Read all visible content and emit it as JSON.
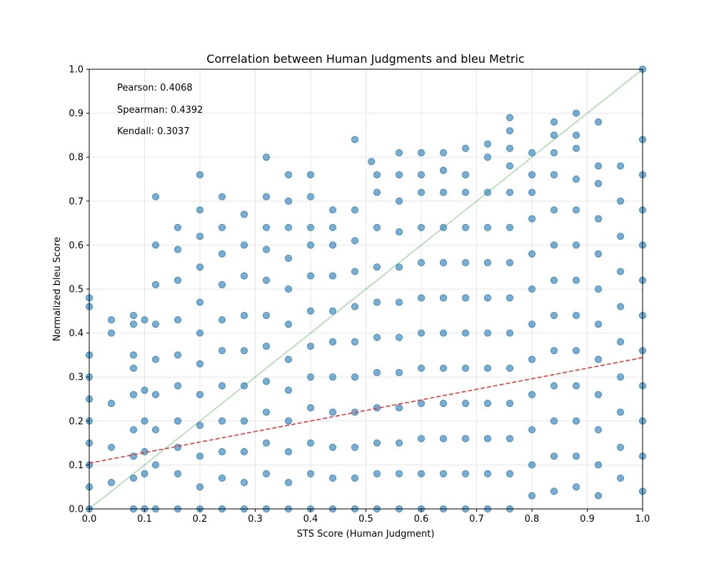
{
  "chart_data": {
    "type": "scatter",
    "title": "Correlation between Human Judgments and bleu Metric",
    "xlabel": "STS Score (Human Judgment)",
    "ylabel": "Normalized bleu Score",
    "xlim": [
      0,
      1
    ],
    "ylim": [
      0,
      1
    ],
    "x_ticks": [
      0.0,
      0.1,
      0.2,
      0.3,
      0.4,
      0.5,
      0.6,
      0.7,
      0.8,
      0.9,
      1.0
    ],
    "y_ticks": [
      0.0,
      0.1,
      0.2,
      0.3,
      0.4,
      0.5,
      0.6,
      0.7,
      0.8,
      0.9,
      1.0
    ],
    "x_tick_labels": [
      "0.0",
      "0.1",
      "0.2",
      "0.3",
      "0.4",
      "0.5",
      "0.6",
      "0.7",
      "0.8",
      "0.9",
      "1.0"
    ],
    "y_tick_labels": [
      "0.0",
      "0.1",
      "0.2",
      "0.3",
      "0.4",
      "0.5",
      "0.6",
      "0.7",
      "0.8",
      "0.9",
      "1.0"
    ],
    "grid": true,
    "stats": [
      "Pearson: 0.4068",
      "Spearman: 0.4392",
      "Kendall: 0.3037"
    ],
    "point_color": "#1f77b4",
    "trend_color": "#e83a3a",
    "diagonal_color": "#2ca02c",
    "trend_line": {
      "x": [
        0,
        1
      ],
      "y": [
        0.104,
        0.344
      ]
    },
    "diagonal_line": {
      "x": [
        0,
        1
      ],
      "y": [
        0,
        1
      ]
    },
    "series": [
      {
        "points": [
          [
            0.0,
            0.0
          ],
          [
            0.0,
            0.05
          ],
          [
            0.0,
            0.1
          ],
          [
            0.0,
            0.15
          ],
          [
            0.0,
            0.2
          ],
          [
            0.0,
            0.25
          ],
          [
            0.0,
            0.3
          ],
          [
            0.0,
            0.35
          ],
          [
            0.0,
            0.46
          ],
          [
            0.0,
            0.48
          ],
          [
            0.04,
            0.4
          ],
          [
            0.04,
            0.43
          ],
          [
            0.04,
            0.24
          ],
          [
            0.04,
            0.14
          ],
          [
            0.04,
            0.06
          ],
          [
            0.08,
            0.0
          ],
          [
            0.08,
            0.07
          ],
          [
            0.08,
            0.12
          ],
          [
            0.08,
            0.18
          ],
          [
            0.08,
            0.26
          ],
          [
            0.08,
            0.32
          ],
          [
            0.08,
            0.35
          ],
          [
            0.08,
            0.42
          ],
          [
            0.08,
            0.44
          ],
          [
            0.1,
            0.0
          ],
          [
            0.1,
            0.08
          ],
          [
            0.1,
            0.13
          ],
          [
            0.1,
            0.2
          ],
          [
            0.1,
            0.27
          ],
          [
            0.1,
            0.43
          ],
          [
            0.12,
            0.0
          ],
          [
            0.12,
            0.1
          ],
          [
            0.12,
            0.18
          ],
          [
            0.12,
            0.26
          ],
          [
            0.12,
            0.34
          ],
          [
            0.12,
            0.42
          ],
          [
            0.12,
            0.51
          ],
          [
            0.12,
            0.6
          ],
          [
            0.12,
            0.71
          ],
          [
            0.16,
            0.0
          ],
          [
            0.16,
            0.08
          ],
          [
            0.16,
            0.14
          ],
          [
            0.16,
            0.2
          ],
          [
            0.16,
            0.28
          ],
          [
            0.16,
            0.35
          ],
          [
            0.16,
            0.43
          ],
          [
            0.16,
            0.52
          ],
          [
            0.16,
            0.59
          ],
          [
            0.16,
            0.64
          ],
          [
            0.2,
            0.0
          ],
          [
            0.2,
            0.05
          ],
          [
            0.2,
            0.12
          ],
          [
            0.2,
            0.19
          ],
          [
            0.2,
            0.26
          ],
          [
            0.2,
            0.33
          ],
          [
            0.2,
            0.4
          ],
          [
            0.2,
            0.47
          ],
          [
            0.2,
            0.55
          ],
          [
            0.2,
            0.62
          ],
          [
            0.2,
            0.68
          ],
          [
            0.2,
            0.76
          ],
          [
            0.24,
            0.0
          ],
          [
            0.24,
            0.07
          ],
          [
            0.24,
            0.13
          ],
          [
            0.24,
            0.2
          ],
          [
            0.24,
            0.28
          ],
          [
            0.24,
            0.36
          ],
          [
            0.24,
            0.43
          ],
          [
            0.24,
            0.51
          ],
          [
            0.24,
            0.58
          ],
          [
            0.24,
            0.64
          ],
          [
            0.24,
            0.71
          ],
          [
            0.28,
            0.0
          ],
          [
            0.28,
            0.06
          ],
          [
            0.28,
            0.13
          ],
          [
            0.28,
            0.2
          ],
          [
            0.28,
            0.28
          ],
          [
            0.28,
            0.36
          ],
          [
            0.28,
            0.44
          ],
          [
            0.28,
            0.53
          ],
          [
            0.28,
            0.6
          ],
          [
            0.28,
            0.67
          ],
          [
            0.32,
            0.0
          ],
          [
            0.32,
            0.08
          ],
          [
            0.32,
            0.15
          ],
          [
            0.32,
            0.22
          ],
          [
            0.32,
            0.29
          ],
          [
            0.32,
            0.37
          ],
          [
            0.32,
            0.44
          ],
          [
            0.32,
            0.52
          ],
          [
            0.32,
            0.59
          ],
          [
            0.32,
            0.64
          ],
          [
            0.32,
            0.71
          ],
          [
            0.32,
            0.8
          ],
          [
            0.36,
            0.0
          ],
          [
            0.36,
            0.06
          ],
          [
            0.36,
            0.13
          ],
          [
            0.36,
            0.2
          ],
          [
            0.36,
            0.27
          ],
          [
            0.36,
            0.34
          ],
          [
            0.36,
            0.42
          ],
          [
            0.36,
            0.5
          ],
          [
            0.36,
            0.57
          ],
          [
            0.36,
            0.64
          ],
          [
            0.36,
            0.7
          ],
          [
            0.36,
            0.76
          ],
          [
            0.4,
            0.0
          ],
          [
            0.4,
            0.08
          ],
          [
            0.4,
            0.15
          ],
          [
            0.4,
            0.23
          ],
          [
            0.4,
            0.3
          ],
          [
            0.4,
            0.37
          ],
          [
            0.4,
            0.45
          ],
          [
            0.4,
            0.53
          ],
          [
            0.4,
            0.6
          ],
          [
            0.4,
            0.64
          ],
          [
            0.4,
            0.71
          ],
          [
            0.4,
            0.76
          ],
          [
            0.44,
            0.0
          ],
          [
            0.44,
            0.07
          ],
          [
            0.44,
            0.14
          ],
          [
            0.44,
            0.22
          ],
          [
            0.44,
            0.3
          ],
          [
            0.44,
            0.38
          ],
          [
            0.44,
            0.45
          ],
          [
            0.44,
            0.53
          ],
          [
            0.44,
            0.6
          ],
          [
            0.44,
            0.64
          ],
          [
            0.44,
            0.68
          ],
          [
            0.48,
            0.0
          ],
          [
            0.48,
            0.07
          ],
          [
            0.48,
            0.14
          ],
          [
            0.48,
            0.22
          ],
          [
            0.48,
            0.3
          ],
          [
            0.48,
            0.38
          ],
          [
            0.48,
            0.46
          ],
          [
            0.48,
            0.54
          ],
          [
            0.48,
            0.61
          ],
          [
            0.48,
            0.68
          ],
          [
            0.48,
            0.84
          ],
          [
            0.52,
            0.0
          ],
          [
            0.52,
            0.08
          ],
          [
            0.52,
            0.15
          ],
          [
            0.52,
            0.23
          ],
          [
            0.52,
            0.31
          ],
          [
            0.52,
            0.39
          ],
          [
            0.52,
            0.47
          ],
          [
            0.52,
            0.55
          ],
          [
            0.52,
            0.64
          ],
          [
            0.52,
            0.72
          ],
          [
            0.52,
            0.76
          ],
          [
            0.51,
            0.79
          ],
          [
            0.56,
            0.0
          ],
          [
            0.56,
            0.08
          ],
          [
            0.56,
            0.15
          ],
          [
            0.56,
            0.23
          ],
          [
            0.56,
            0.31
          ],
          [
            0.56,
            0.39
          ],
          [
            0.56,
            0.47
          ],
          [
            0.56,
            0.55
          ],
          [
            0.56,
            0.63
          ],
          [
            0.56,
            0.7
          ],
          [
            0.56,
            0.76
          ],
          [
            0.56,
            0.81
          ],
          [
            0.6,
            0.0
          ],
          [
            0.6,
            0.08
          ],
          [
            0.6,
            0.16
          ],
          [
            0.6,
            0.24
          ],
          [
            0.6,
            0.32
          ],
          [
            0.6,
            0.4
          ],
          [
            0.6,
            0.48
          ],
          [
            0.6,
            0.56
          ],
          [
            0.6,
            0.64
          ],
          [
            0.6,
            0.72
          ],
          [
            0.6,
            0.76
          ],
          [
            0.6,
            0.81
          ],
          [
            0.64,
            0.0
          ],
          [
            0.64,
            0.08
          ],
          [
            0.64,
            0.16
          ],
          [
            0.64,
            0.24
          ],
          [
            0.64,
            0.32
          ],
          [
            0.64,
            0.4
          ],
          [
            0.64,
            0.48
          ],
          [
            0.64,
            0.56
          ],
          [
            0.64,
            0.64
          ],
          [
            0.64,
            0.72
          ],
          [
            0.64,
            0.77
          ],
          [
            0.64,
            0.81
          ],
          [
            0.68,
            0.0
          ],
          [
            0.68,
            0.08
          ],
          [
            0.68,
            0.16
          ],
          [
            0.68,
            0.24
          ],
          [
            0.68,
            0.32
          ],
          [
            0.68,
            0.4
          ],
          [
            0.68,
            0.48
          ],
          [
            0.68,
            0.56
          ],
          [
            0.68,
            0.64
          ],
          [
            0.68,
            0.72
          ],
          [
            0.68,
            0.76
          ],
          [
            0.68,
            0.82
          ],
          [
            0.72,
            0.0
          ],
          [
            0.72,
            0.08
          ],
          [
            0.72,
            0.16
          ],
          [
            0.72,
            0.24
          ],
          [
            0.72,
            0.32
          ],
          [
            0.72,
            0.4
          ],
          [
            0.72,
            0.48
          ],
          [
            0.72,
            0.56
          ],
          [
            0.72,
            0.64
          ],
          [
            0.72,
            0.72
          ],
          [
            0.72,
            0.8
          ],
          [
            0.72,
            0.83
          ],
          [
            0.76,
            0.0
          ],
          [
            0.76,
            0.08
          ],
          [
            0.76,
            0.16
          ],
          [
            0.76,
            0.24
          ],
          [
            0.76,
            0.32
          ],
          [
            0.76,
            0.4
          ],
          [
            0.76,
            0.48
          ],
          [
            0.76,
            0.56
          ],
          [
            0.76,
            0.64
          ],
          [
            0.76,
            0.72
          ],
          [
            0.76,
            0.78
          ],
          [
            0.76,
            0.82
          ],
          [
            0.76,
            0.86
          ],
          [
            0.76,
            0.89
          ],
          [
            0.8,
            0.03
          ],
          [
            0.8,
            0.1
          ],
          [
            0.8,
            0.18
          ],
          [
            0.8,
            0.26
          ],
          [
            0.8,
            0.34
          ],
          [
            0.8,
            0.42
          ],
          [
            0.8,
            0.5
          ],
          [
            0.8,
            0.58
          ],
          [
            0.8,
            0.66
          ],
          [
            0.8,
            0.72
          ],
          [
            0.8,
            0.76
          ],
          [
            0.8,
            0.81
          ],
          [
            0.84,
            0.04
          ],
          [
            0.84,
            0.12
          ],
          [
            0.84,
            0.2
          ],
          [
            0.84,
            0.28
          ],
          [
            0.84,
            0.36
          ],
          [
            0.84,
            0.44
          ],
          [
            0.84,
            0.52
          ],
          [
            0.84,
            0.6
          ],
          [
            0.84,
            0.68
          ],
          [
            0.84,
            0.76
          ],
          [
            0.84,
            0.81
          ],
          [
            0.84,
            0.85
          ],
          [
            0.84,
            0.88
          ],
          [
            0.88,
            0.05
          ],
          [
            0.88,
            0.12
          ],
          [
            0.88,
            0.2
          ],
          [
            0.88,
            0.28
          ],
          [
            0.88,
            0.36
          ],
          [
            0.88,
            0.44
          ],
          [
            0.88,
            0.52
          ],
          [
            0.88,
            0.6
          ],
          [
            0.88,
            0.68
          ],
          [
            0.88,
            0.75
          ],
          [
            0.88,
            0.82
          ],
          [
            0.88,
            0.85
          ],
          [
            0.88,
            0.9
          ],
          [
            0.92,
            0.03
          ],
          [
            0.92,
            0.1
          ],
          [
            0.92,
            0.18
          ],
          [
            0.92,
            0.26
          ],
          [
            0.92,
            0.34
          ],
          [
            0.92,
            0.42
          ],
          [
            0.92,
            0.5
          ],
          [
            0.92,
            0.58
          ],
          [
            0.92,
            0.66
          ],
          [
            0.92,
            0.74
          ],
          [
            0.92,
            0.78
          ],
          [
            0.92,
            0.88
          ],
          [
            0.96,
            0.07
          ],
          [
            0.96,
            0.14
          ],
          [
            0.96,
            0.22
          ],
          [
            0.96,
            0.3
          ],
          [
            0.96,
            0.38
          ],
          [
            0.96,
            0.46
          ],
          [
            0.96,
            0.54
          ],
          [
            0.96,
            0.62
          ],
          [
            0.96,
            0.7
          ],
          [
            0.96,
            0.78
          ],
          [
            1.0,
            0.04
          ],
          [
            1.0,
            0.12
          ],
          [
            1.0,
            0.2
          ],
          [
            1.0,
            0.28
          ],
          [
            1.0,
            0.36
          ],
          [
            1.0,
            0.44
          ],
          [
            1.0,
            0.52
          ],
          [
            1.0,
            0.6
          ],
          [
            1.0,
            0.68
          ],
          [
            1.0,
            0.76
          ],
          [
            1.0,
            0.84
          ],
          [
            1.0,
            1.0
          ]
        ]
      }
    ]
  }
}
